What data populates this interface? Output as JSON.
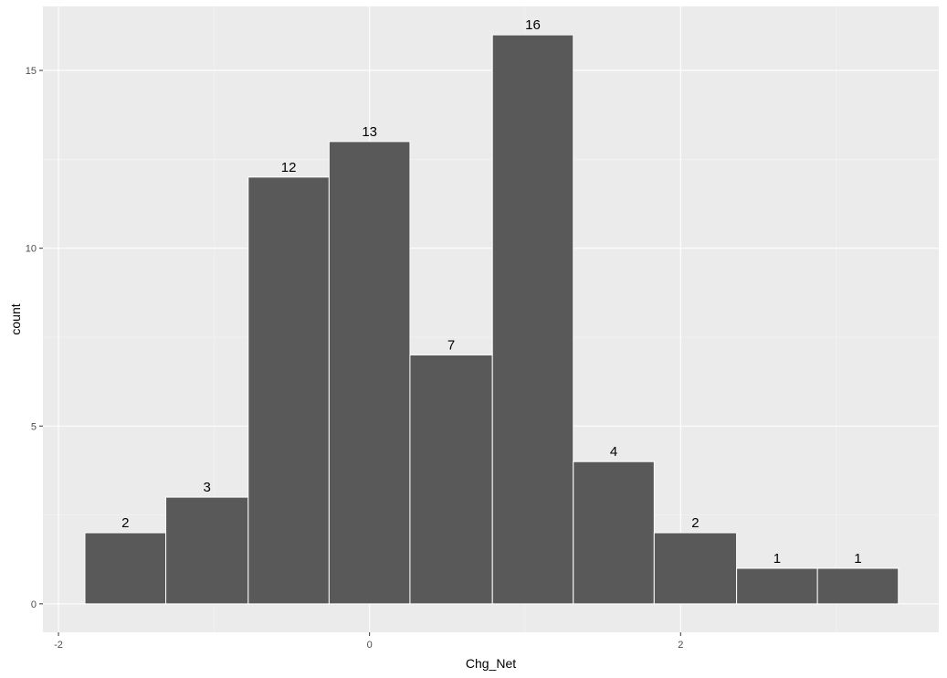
{
  "chart_data": {
    "type": "bar",
    "title": "",
    "xlabel": "Chg_Net",
    "ylabel": "count",
    "bins": [
      {
        "x0": -1.83,
        "x1": -1.31,
        "count": 2
      },
      {
        "x0": -1.31,
        "x1": -0.78,
        "count": 3
      },
      {
        "x0": -0.78,
        "x1": -0.26,
        "count": 12
      },
      {
        "x0": -0.26,
        "x1": 0.26,
        "count": 13
      },
      {
        "x0": 0.26,
        "x1": 0.79,
        "count": 7
      },
      {
        "x0": 0.79,
        "x1": 1.31,
        "count": 16
      },
      {
        "x0": 1.31,
        "x1": 1.83,
        "count": 4
      },
      {
        "x0": 1.83,
        "x1": 2.36,
        "count": 2
      },
      {
        "x0": 2.36,
        "x1": 2.88,
        "count": 1
      },
      {
        "x0": 2.88,
        "x1": 3.4,
        "count": 1
      }
    ],
    "xlim": [
      -2.1,
      3.66
    ],
    "ylim": [
      -0.8,
      16.8
    ],
    "x_ticks": [
      {
        "value": -2,
        "label": "-2"
      },
      {
        "value": 0,
        "label": "0"
      },
      {
        "value": 2,
        "label": "2"
      }
    ],
    "y_ticks": [
      {
        "value": 0,
        "label": "0"
      },
      {
        "value": 5,
        "label": "5"
      },
      {
        "value": 10,
        "label": "10"
      },
      {
        "value": 15,
        "label": "15"
      }
    ],
    "grid": true,
    "legend": "none",
    "colors": {
      "bar_fill": "#595959",
      "bar_outline": "#ffffff",
      "panel_background": "#ebebeb",
      "grid_major": "#ffffff",
      "grid_minor": "#f5f5f5"
    }
  }
}
